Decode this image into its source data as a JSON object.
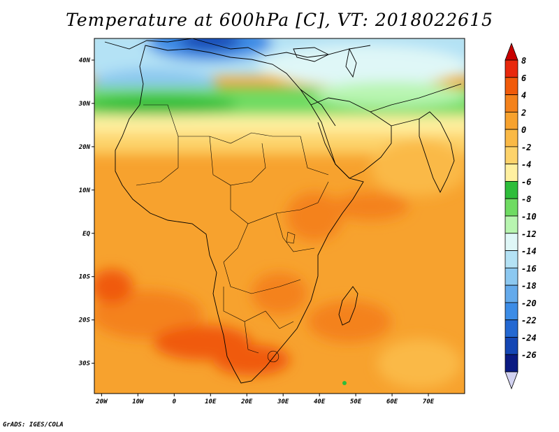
{
  "title": "Temperature at 600hPa [C], VT: 2018022615",
  "credit": "GrADS: IGES/COLA",
  "map": {
    "lon_range": [
      -22,
      80
    ],
    "lat_range": [
      -37,
      45
    ],
    "lon_ticks": [
      {
        "v": -20,
        "label": "20W"
      },
      {
        "v": -10,
        "label": "10W"
      },
      {
        "v": 0,
        "label": "0"
      },
      {
        "v": 10,
        "label": "10E"
      },
      {
        "v": 20,
        "label": "20E"
      },
      {
        "v": 30,
        "label": "30E"
      },
      {
        "v": 40,
        "label": "40E"
      },
      {
        "v": 50,
        "label": "50E"
      },
      {
        "v": 60,
        "label": "60E"
      },
      {
        "v": 70,
        "label": "70E"
      }
    ],
    "lat_ticks": [
      {
        "v": 40,
        "label": "40N"
      },
      {
        "v": 30,
        "label": "30N"
      },
      {
        "v": 20,
        "label": "20N"
      },
      {
        "v": 10,
        "label": "10N"
      },
      {
        "v": 0,
        "label": "EQ"
      },
      {
        "v": -10,
        "label": "10S"
      },
      {
        "v": -20,
        "label": "20S"
      },
      {
        "v": -30,
        "label": "30S"
      }
    ]
  },
  "colorbar": {
    "entries": [
      {
        "label": "8",
        "color": "#e8280c"
      },
      {
        "label": "6",
        "color": "#f05a0a"
      },
      {
        "label": "4",
        "color": "#f4821c"
      },
      {
        "label": "2",
        "color": "#f7a22e"
      },
      {
        "label": "0",
        "color": "#fab946"
      },
      {
        "label": "-2",
        "color": "#fdd36b"
      },
      {
        "label": "-4",
        "color": "#fff0a0"
      },
      {
        "label": "-6",
        "color": "#2ebd3a"
      },
      {
        "label": "-8",
        "color": "#6fdb62"
      },
      {
        "label": "-10",
        "color": "#b8f5b0"
      },
      {
        "label": "-12",
        "color": "#dff7f7"
      },
      {
        "label": "-14",
        "color": "#b4e2f5"
      },
      {
        "label": "-16",
        "color": "#8cc8f0"
      },
      {
        "label": "-18",
        "color": "#64aaeb"
      },
      {
        "label": "-20",
        "color": "#3c8ce6"
      },
      {
        "label": "-22",
        "color": "#2368d2"
      },
      {
        "label": "-24",
        "color": "#1446b4"
      },
      {
        "label": "-26",
        "color": "#0a1a82"
      }
    ],
    "top_arrow_color": "#c80000",
    "bottom_arrow_color": "#d2d2f0"
  }
}
